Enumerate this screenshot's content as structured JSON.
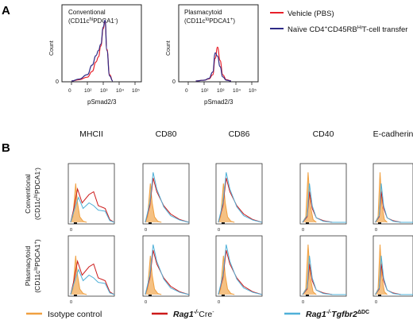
{
  "panel_a": {
    "label": "A",
    "left": {
      "title_line1": "Conventional",
      "title_line2_main": "(CD11c",
      "title_line2_sup1": "hi",
      "title_line2_mid": "PDCA1",
      "title_line2_sup2": "-",
      "title_line2_end": ")",
      "ylabel": "Count",
      "xlabel": "pSmad2/3",
      "y_zero": "0",
      "x_ticks": [
        "0",
        "10²",
        "10³",
        "10⁴",
        "10⁵"
      ]
    },
    "right": {
      "title_line1": "Plasmacytoid",
      "title_line2_main": "(CD11c",
      "title_line2_sup1": "lo",
      "title_line2_mid": "PDCA1",
      "title_line2_sup2": "+",
      "title_line2_end": ")",
      "ylabel": "Count",
      "xlabel": "pSmad2/3",
      "y_zero": "0",
      "x_ticks": [
        "0",
        "10²",
        "10³",
        "10⁴",
        "10⁵"
      ]
    },
    "legend": {
      "vehicle": "Vehicle (PBS)",
      "transfer_pre": "Naïve CD4",
      "transfer_sup1": "+",
      "transfer_mid": "CD45RB",
      "transfer_sup2": "Hi",
      "transfer_end": "T-cell transfer",
      "colors": {
        "vehicle": "#e8202a",
        "transfer": "#2e2a86"
      }
    }
  },
  "panel_b": {
    "label": "B",
    "columns": [
      "MHCII",
      "CD80",
      "CD86",
      "CD40",
      "E-cadherin"
    ],
    "rows": [
      {
        "line1": "Conventional",
        "l2_main": "(CD11c",
        "l2_sup1": "hi",
        "l2_mid": "PDCA1",
        "l2_sup2": "-",
        "l2_end": ")"
      },
      {
        "line1": "Plasmacytoid",
        "l2_main": "(CD11c",
        "l2_sup1": "lo",
        "l2_mid": "PDCA1",
        "l2_sup2": "+",
        "l2_end": ")"
      }
    ],
    "legend": {
      "isotype": "Isotype control",
      "cre_italic": "Rag1",
      "cre_sup1": "-/-",
      "cre_end": "Cre",
      "cre_sup2": "-",
      "tgf_italic": "Rag1",
      "tgf_sup1": "-/-",
      "tgf_mid": "Tgfbr2",
      "tgf_sup2": "ΔDC",
      "colors": {
        "isotype": "#f0a040",
        "cre": "#cc1a1a",
        "tgf": "#4fb0d8"
      }
    }
  },
  "chart_data": [
    {
      "type": "area",
      "title": "Conventional (CD11cʰⁱPDCA1⁻)",
      "xlabel": "pSmad2/3",
      "ylabel": "Count",
      "x_scale": "log",
      "x": [
        10,
        30,
        100,
        200,
        350,
        500,
        700,
        1000,
        1300,
        1700,
        2500,
        4000
      ],
      "series": [
        {
          "name": "Vehicle (PBS)",
          "values": [
            0,
            0.02,
            0.06,
            0.15,
            0.3,
            0.38,
            0.55,
            0.82,
            0.95,
            0.5,
            0.1,
            0
          ]
        },
        {
          "name": "Naïve CD4⁺CD45RBᴴⁱT-cell transfer",
          "values": [
            0,
            0.03,
            0.1,
            0.25,
            0.4,
            0.48,
            0.58,
            0.85,
            0.96,
            0.48,
            0.08,
            0
          ]
        }
      ]
    },
    {
      "type": "area",
      "title": "Plasmacytoid (CD11cˡᵒPDCA1⁺)",
      "xlabel": "pSmad2/3",
      "ylabel": "Count",
      "x_scale": "log",
      "x": [
        30,
        100,
        200,
        350,
        500,
        700,
        1000,
        1500,
        2500,
        5000
      ],
      "series": [
        {
          "name": "Vehicle (PBS)",
          "values": [
            0,
            0.02,
            0.05,
            0.15,
            0.55,
            0.82,
            0.5,
            0.15,
            0.03,
            0
          ]
        },
        {
          "name": "Naïve CD4⁺CD45RBᴴⁱT-cell transfer",
          "values": [
            0,
            0.02,
            0.06,
            0.22,
            0.68,
            0.6,
            0.35,
            0.1,
            0.02,
            0
          ]
        }
      ]
    },
    {
      "type": "line",
      "title": "MHCII / CD80 / CD86 / CD40 / E-cadherin",
      "series": [
        {
          "name": "Isotype control"
        },
        {
          "name": "Rag1⁻/⁻Cre⁻"
        },
        {
          "name": "Rag1⁻/⁻Tgfbr2ΔDC"
        }
      ]
    }
  ]
}
